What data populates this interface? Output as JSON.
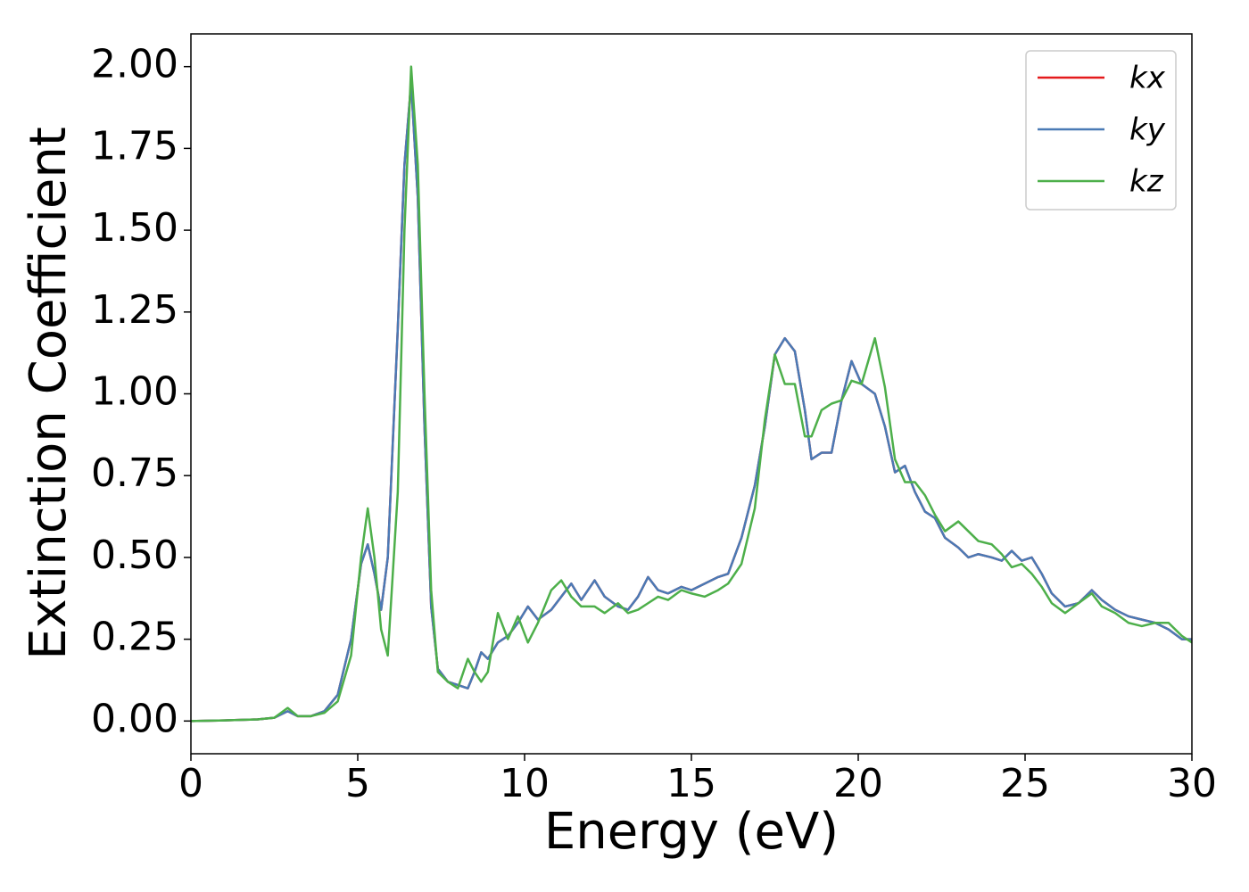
{
  "chart_data": {
    "type": "line",
    "x_label": "Energy (eV)",
    "y_label": "Extinction Coefficient",
    "xlim": [
      0,
      30
    ],
    "xticks": [
      0,
      5,
      10,
      15,
      20,
      25,
      30
    ],
    "ylim": [
      -0.1,
      2.1
    ],
    "yticks": [
      {
        "value": 0,
        "label": "0.00"
      },
      {
        "value": 0.25,
        "label": "0.25"
      },
      {
        "value": 0.5,
        "label": "0.50"
      },
      {
        "value": 0.75,
        "label": "0.75"
      },
      {
        "value": 1,
        "label": "1.00"
      },
      {
        "value": 1.25,
        "label": "1.25"
      },
      {
        "value": 1.5,
        "label": "1.50"
      },
      {
        "value": 1.75,
        "label": "1.75"
      },
      {
        "value": 2,
        "label": "2.00"
      }
    ],
    "grid": false,
    "legend": "upper right",
    "x": [
      0,
      1,
      2,
      2.5,
      2.9,
      3.2,
      3.6,
      4,
      4.4,
      4.8,
      5.1,
      5.3,
      5.5,
      5.7,
      5.9,
      6.2,
      6.4,
      6.6,
      6.8,
      7.0,
      7.2,
      7.4,
      7.7,
      8.0,
      8.3,
      8.5,
      8.7,
      8.9,
      9.2,
      9.5,
      9.8,
      10.1,
      10.4,
      10.8,
      11.1,
      11.4,
      11.7,
      12.1,
      12.4,
      12.8,
      13.1,
      13.4,
      13.7,
      14.0,
      14.3,
      14.7,
      15.0,
      15.4,
      15.8,
      16.1,
      16.5,
      16.9,
      17.2,
      17.5,
      17.8,
      18.1,
      18.4,
      18.6,
      18.9,
      19.2,
      19.5,
      19.8,
      20.1,
      20.5,
      20.8,
      21.1,
      21.4,
      21.7,
      22.0,
      22.3,
      22.6,
      23.0,
      23.3,
      23.6,
      24.0,
      24.3,
      24.6,
      24.9,
      25.2,
      25.5,
      25.8,
      26.2,
      26.6,
      27.0,
      27.3,
      27.7,
      28.1,
      28.5,
      28.9,
      29.3,
      29.7,
      30
    ],
    "series": [
      {
        "name": "kx",
        "color": "#e41a1c",
        "values": [
          0,
          0.002,
          0.005,
          0.01,
          0.03,
          0.015,
          0.015,
          0.03,
          0.08,
          0.25,
          0.48,
          0.54,
          0.45,
          0.34,
          0.5,
          1.2,
          1.7,
          1.95,
          1.6,
          0.9,
          0.35,
          0.16,
          0.12,
          0.11,
          0.1,
          0.15,
          0.21,
          0.19,
          0.24,
          0.26,
          0.3,
          0.35,
          0.31,
          0.34,
          0.38,
          0.42,
          0.37,
          0.43,
          0.38,
          0.35,
          0.34,
          0.38,
          0.44,
          0.4,
          0.39,
          0.41,
          0.4,
          0.42,
          0.44,
          0.45,
          0.56,
          0.72,
          0.9,
          1.12,
          1.17,
          1.13,
          0.95,
          0.8,
          0.82,
          0.82,
          0.98,
          1.1,
          1.03,
          1.0,
          0.9,
          0.76,
          0.78,
          0.7,
          0.64,
          0.62,
          0.56,
          0.53,
          0.5,
          0.51,
          0.5,
          0.49,
          0.52,
          0.49,
          0.5,
          0.45,
          0.39,
          0.35,
          0.36,
          0.4,
          0.37,
          0.34,
          0.32,
          0.31,
          0.3,
          0.28,
          0.25,
          0.25
        ]
      },
      {
        "name": "ky",
        "color": "#4a7ab5",
        "values": [
          0,
          0.002,
          0.005,
          0.01,
          0.03,
          0.015,
          0.015,
          0.03,
          0.08,
          0.25,
          0.48,
          0.54,
          0.45,
          0.34,
          0.5,
          1.2,
          1.7,
          1.95,
          1.6,
          0.9,
          0.35,
          0.16,
          0.12,
          0.11,
          0.1,
          0.15,
          0.21,
          0.19,
          0.24,
          0.26,
          0.3,
          0.35,
          0.31,
          0.34,
          0.38,
          0.42,
          0.37,
          0.43,
          0.38,
          0.35,
          0.34,
          0.38,
          0.44,
          0.4,
          0.39,
          0.41,
          0.4,
          0.42,
          0.44,
          0.45,
          0.56,
          0.72,
          0.9,
          1.12,
          1.17,
          1.13,
          0.95,
          0.8,
          0.82,
          0.82,
          0.98,
          1.1,
          1.03,
          1.0,
          0.9,
          0.76,
          0.78,
          0.7,
          0.64,
          0.62,
          0.56,
          0.53,
          0.5,
          0.51,
          0.5,
          0.49,
          0.52,
          0.49,
          0.5,
          0.45,
          0.39,
          0.35,
          0.36,
          0.4,
          0.37,
          0.34,
          0.32,
          0.31,
          0.3,
          0.28,
          0.25,
          0.25
        ]
      },
      {
        "name": "kz",
        "color": "#4daf4a",
        "values": [
          0,
          0.002,
          0.005,
          0.01,
          0.04,
          0.015,
          0.015,
          0.025,
          0.06,
          0.2,
          0.5,
          0.65,
          0.5,
          0.28,
          0.2,
          0.7,
          1.5,
          2.0,
          1.7,
          1.0,
          0.4,
          0.15,
          0.12,
          0.1,
          0.19,
          0.15,
          0.12,
          0.15,
          0.33,
          0.25,
          0.32,
          0.24,
          0.3,
          0.4,
          0.43,
          0.38,
          0.35,
          0.35,
          0.33,
          0.36,
          0.33,
          0.34,
          0.36,
          0.38,
          0.37,
          0.4,
          0.39,
          0.38,
          0.4,
          0.42,
          0.48,
          0.65,
          0.92,
          1.12,
          1.03,
          1.03,
          0.87,
          0.87,
          0.95,
          0.97,
          0.98,
          1.04,
          1.03,
          1.17,
          1.02,
          0.8,
          0.73,
          0.73,
          0.69,
          0.63,
          0.58,
          0.61,
          0.58,
          0.55,
          0.54,
          0.51,
          0.47,
          0.48,
          0.45,
          0.41,
          0.36,
          0.33,
          0.36,
          0.39,
          0.35,
          0.33,
          0.3,
          0.29,
          0.3,
          0.3,
          0.26,
          0.24
        ]
      }
    ]
  }
}
